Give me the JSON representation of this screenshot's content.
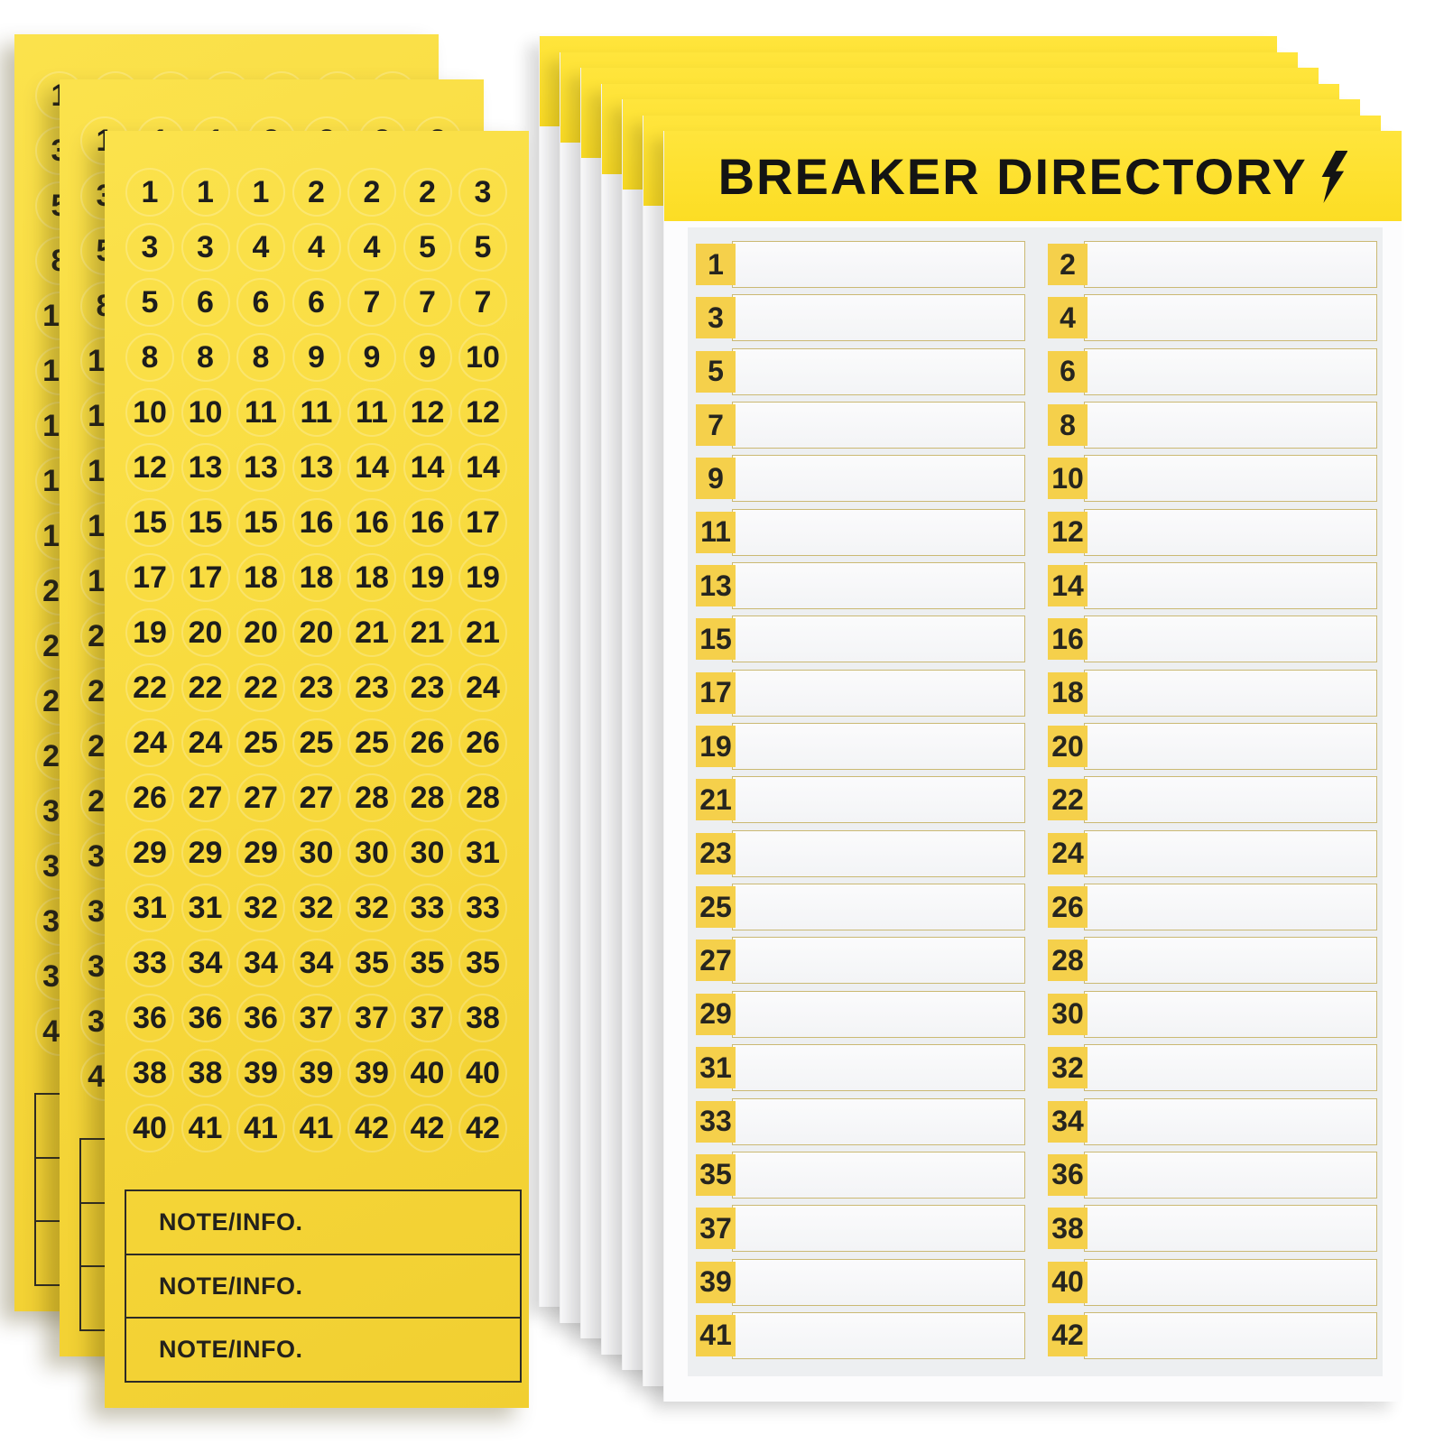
{
  "photo": {
    "background": "#ffffff"
  },
  "sticker_sheets": {
    "count": 3,
    "columns": 7,
    "number_rows": [
      [
        1,
        1,
        1,
        2,
        2,
        2,
        3
      ],
      [
        3,
        3,
        4,
        4,
        4,
        5,
        5
      ],
      [
        5,
        6,
        6,
        6,
        7,
        7,
        7
      ],
      [
        8,
        8,
        8,
        9,
        9,
        9,
        10
      ],
      [
        10,
        10,
        11,
        11,
        11,
        12,
        12
      ],
      [
        12,
        13,
        13,
        13,
        14,
        14,
        14
      ],
      [
        15,
        15,
        15,
        16,
        16,
        16,
        17
      ],
      [
        17,
        17,
        18,
        18,
        18,
        19,
        19
      ],
      [
        19,
        20,
        20,
        20,
        21,
        21,
        21
      ],
      [
        22,
        22,
        22,
        23,
        23,
        23,
        24
      ],
      [
        24,
        24,
        25,
        25,
        25,
        26,
        26
      ],
      [
        26,
        27,
        27,
        27,
        28,
        28,
        28
      ],
      [
        29,
        29,
        29,
        30,
        30,
        30,
        31
      ],
      [
        31,
        31,
        32,
        32,
        32,
        33,
        33
      ],
      [
        33,
        34,
        34,
        34,
        35,
        35,
        35
      ],
      [
        36,
        36,
        36,
        37,
        37,
        37,
        38
      ],
      [
        38,
        38,
        39,
        39,
        39,
        40,
        40
      ],
      [
        40,
        41,
        41,
        41,
        42,
        42,
        42
      ]
    ],
    "note_labels": [
      "NOTE/INFO.",
      "NOTE/INFO.",
      "NOTE/INFO."
    ],
    "colors": {
      "sheet_yellow": "#f8da3d",
      "number_ink": "#1d1d1d"
    }
  },
  "breaker_cards": {
    "count": 7,
    "title": "BREAKER DIRECTORY",
    "title_icon": "lightning-bolt-icon",
    "left_column_numbers": [
      1,
      3,
      5,
      7,
      9,
      11,
      13,
      15,
      17,
      19,
      21,
      23,
      25,
      27,
      29,
      31,
      33,
      35,
      37,
      39,
      41
    ],
    "right_column_numbers": [
      2,
      4,
      6,
      8,
      10,
      12,
      14,
      16,
      18,
      20,
      22,
      24,
      26,
      28,
      30,
      32,
      34,
      36,
      38,
      40,
      42
    ],
    "colors": {
      "header_yellow": "#fcdd24",
      "tab_yellow": "#f5d04b",
      "line_border": "#cbb973",
      "panel_gray": "#edeff1",
      "card_white": "#fcfcfd",
      "title_ink": "#141414"
    }
  }
}
